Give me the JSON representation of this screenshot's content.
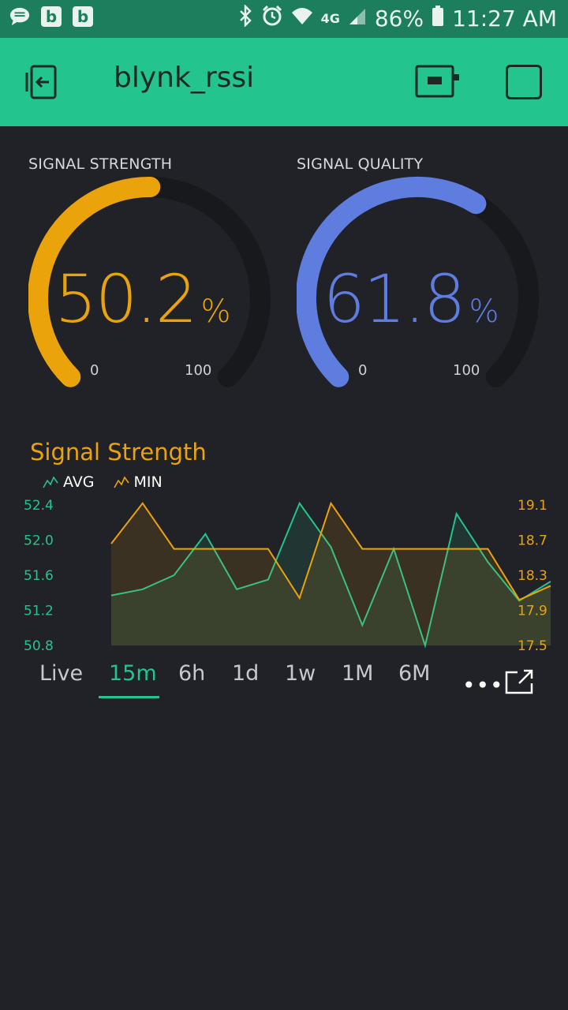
{
  "status_bar": {
    "left_icons": [
      "message-icon",
      "b-app-icon",
      "b-app-icon"
    ],
    "b_letter": "b",
    "network": "4G",
    "battery": "86%",
    "time": "11:27 AM"
  },
  "app_bar": {
    "title": "blynk_rssi"
  },
  "gauges": [
    {
      "label": "SIGNAL STRENGTH",
      "value": "50.2",
      "unit": "%",
      "min": "0",
      "max": "100",
      "fraction": 0.502,
      "color": "#eba30b"
    },
    {
      "label": "SIGNAL QUALITY",
      "value": "61.8",
      "unit": "%",
      "min": "0",
      "max": "100",
      "fraction": 0.618,
      "color": "#5f7cdf"
    }
  ],
  "chart_data": {
    "type": "line",
    "title": "Signal Strength",
    "legend": [
      {
        "name": "AVG",
        "color": "#23c48e"
      },
      {
        "name": "MIN",
        "color": "#eba30b"
      }
    ],
    "left_axis_ticks": [
      "52.4",
      "52.0",
      "51.6",
      "51.2",
      "50.8"
    ],
    "right_axis_ticks": [
      "19.1",
      "18.7",
      "18.3",
      "17.9",
      "17.5"
    ],
    "left_ylim": [
      50.8,
      52.4
    ],
    "right_ylim": [
      17.5,
      19.1
    ],
    "series": [
      {
        "name": "AVG",
        "axis": "left",
        "values": [
          51.37,
          51.44,
          51.6,
          52.07,
          51.44,
          51.55,
          52.42,
          51.92,
          51.03,
          51.9,
          50.8,
          52.3,
          51.75,
          51.31,
          51.53
        ]
      },
      {
        "name": "MIN",
        "axis": "right",
        "values": [
          18.66,
          19.12,
          18.6,
          18.6,
          18.6,
          18.6,
          18.04,
          19.12,
          18.6,
          18.6,
          18.6,
          18.6,
          18.6,
          18.02,
          18.18
        ]
      }
    ]
  },
  "period_tabs": {
    "items": [
      "Live",
      "15m",
      "6h",
      "1d",
      "1w",
      "1M",
      "6M"
    ],
    "active": "15m",
    "more_label": "•••"
  }
}
